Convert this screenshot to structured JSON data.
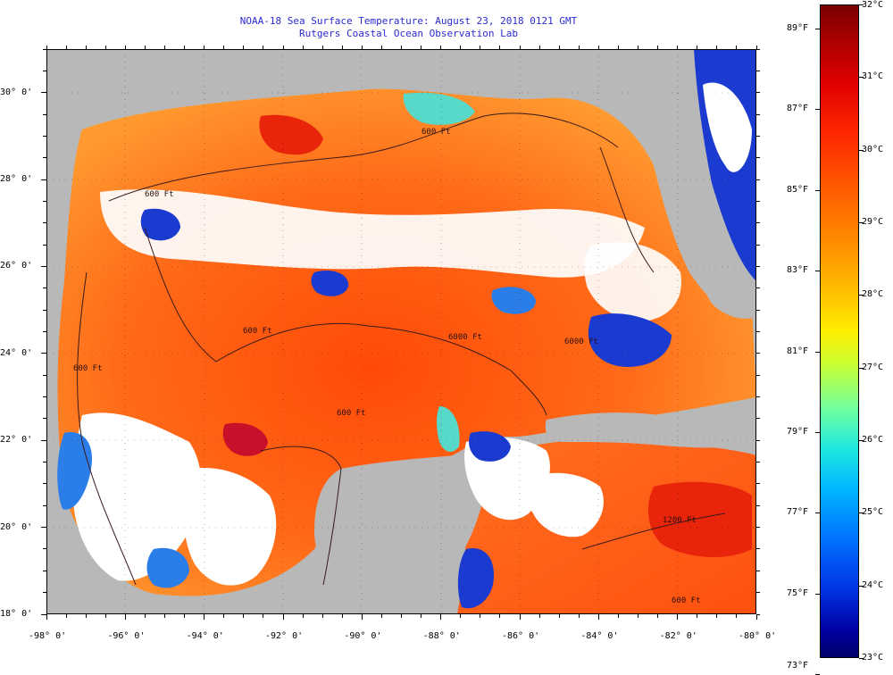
{
  "title": {
    "line1": "NOAA-18 Sea Surface Temperature:  August 23, 2018 0121 GMT",
    "line2": "Rutgers Coastal Ocean Observation Lab"
  },
  "map": {
    "lon_range": [
      -98,
      -80
    ],
    "lat_range": [
      18,
      31
    ],
    "x_labels": [
      "-98° 0'",
      "-96° 0'",
      "-94° 0'",
      "-92° 0'",
      "-90° 0'",
      "-88° 0'",
      "-86° 0'",
      "-84° 0'",
      "-82° 0'",
      "-80° 0'"
    ],
    "y_labels": [
      "30° 0'",
      "28° 0'",
      "26° 0'",
      "24° 0'",
      "22° 0'",
      "20° 0'",
      "18° 0'"
    ],
    "contour_labels": [
      "600 Ft",
      "600 Ft",
      "600 Ft",
      "6000 Ft",
      "600 Ft",
      "600 Ft",
      "6000 Ft",
      "1200 Ft",
      "600 Ft"
    ],
    "colors": {
      "land": "#b8b8b8",
      "cloud": "#ffffff",
      "water_warm": "#ff5a10",
      "water_cool": "#0a2ab0"
    }
  },
  "colorbar": {
    "celsius_labels": [
      "32°C",
      "31°C",
      "30°C",
      "29°C",
      "28°C",
      "27°C",
      "26°C",
      "25°C",
      "24°C",
      "23°C"
    ],
    "fahrenheit_labels": [
      "89°F",
      "87°F",
      "85°F",
      "83°F",
      "81°F",
      "79°F",
      "77°F",
      "75°F",
      "73°F"
    ],
    "celsius_range": [
      23,
      32
    ]
  }
}
